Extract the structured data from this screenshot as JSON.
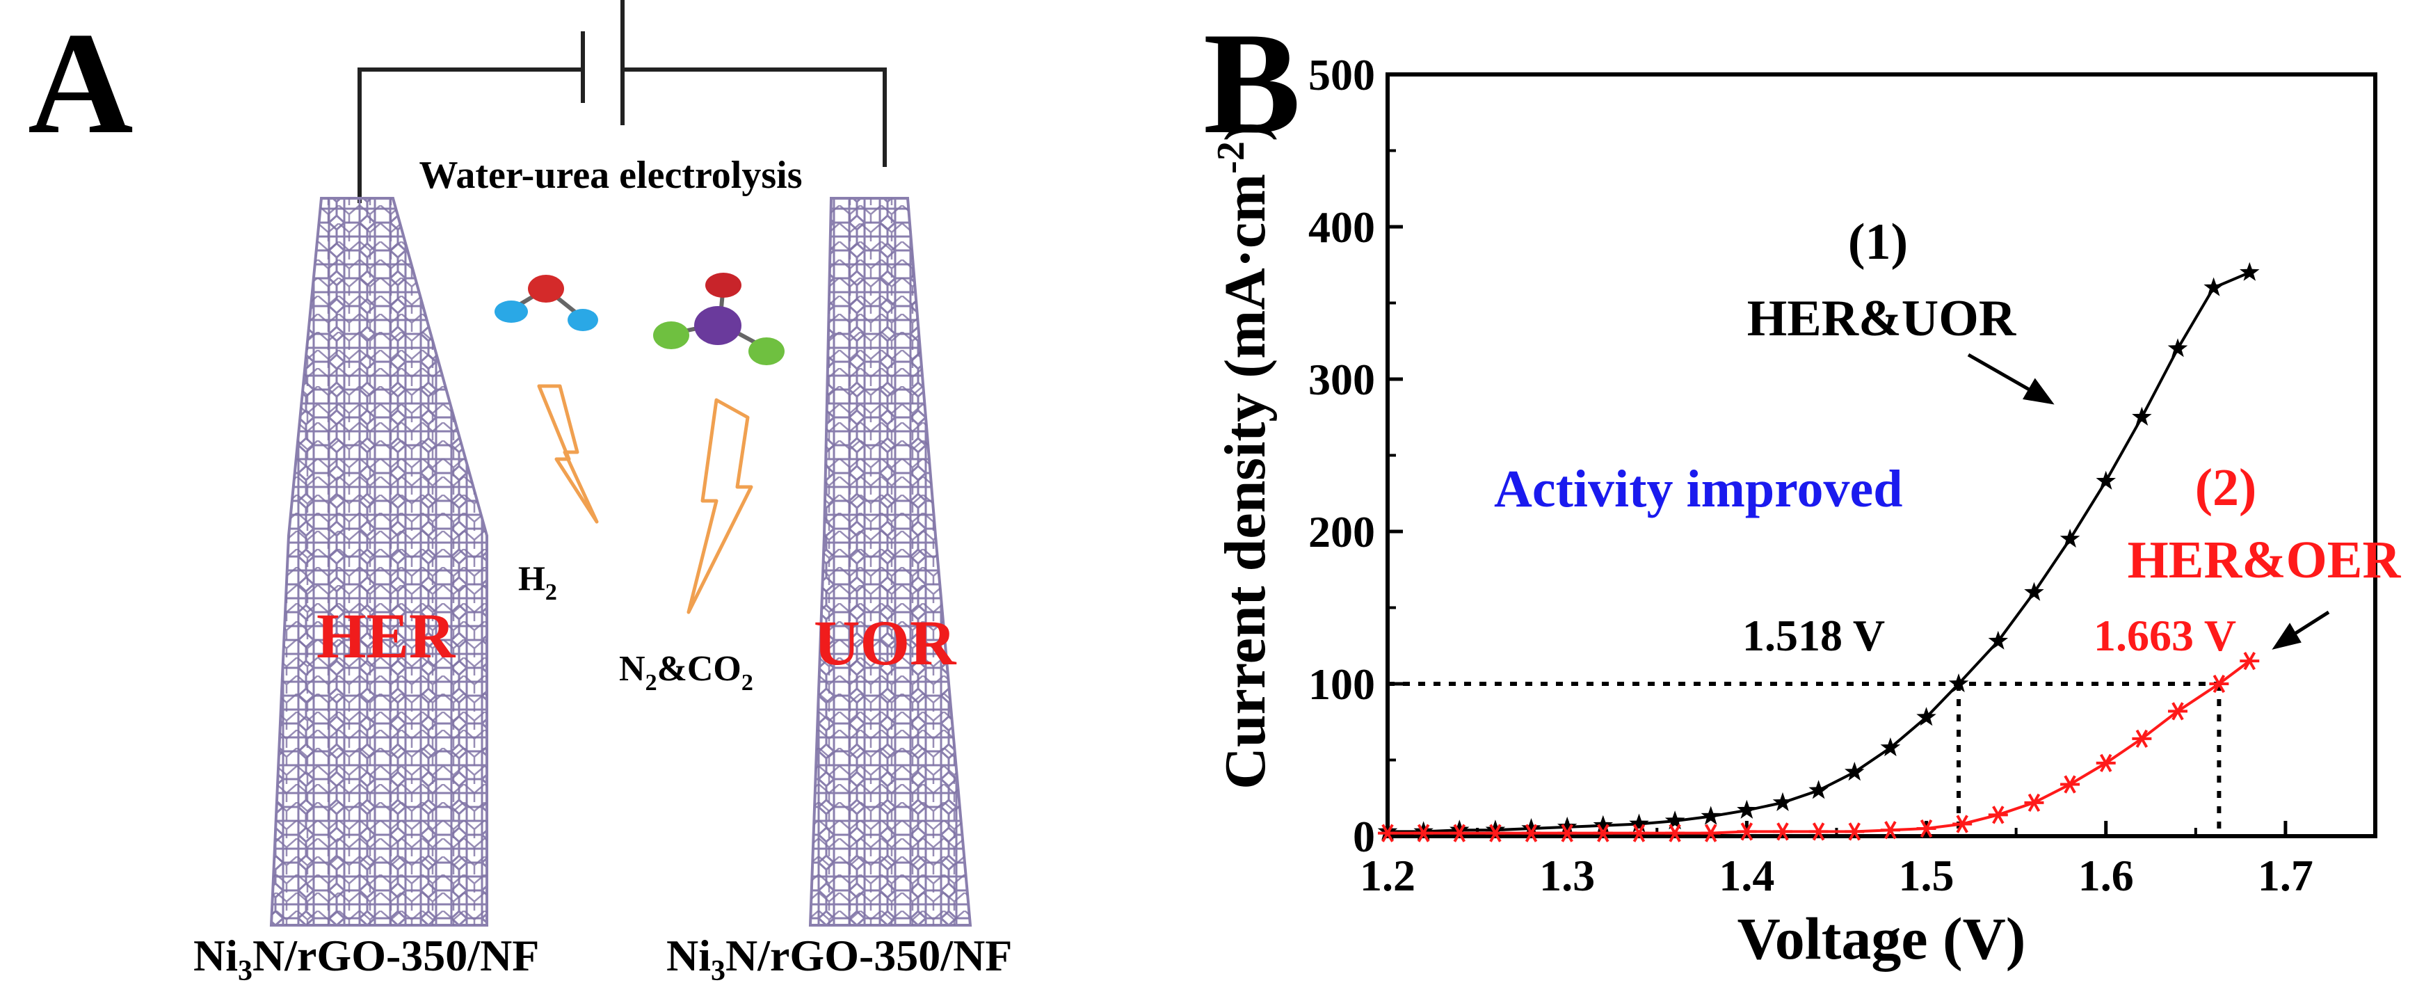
{
  "panel_a": {
    "label": "A",
    "circuit_caption": "Water-urea electrolysis",
    "left_tag": "HER",
    "right_tag": "UOR",
    "h2_base": "H",
    "h2_sub": "2",
    "products_n2": "N",
    "products_n2_sub": "2",
    "products_mid": "&CO",
    "products_co2_sub": "2",
    "left_caption": {
      "pre": "Ni",
      "sub": "3",
      "post": "N/rGO-350/NF"
    },
    "right_caption": {
      "pre": "Ni",
      "sub": "3",
      "post": "N/rGO-350/NF"
    },
    "colors": {
      "electrode": "#8a7fae",
      "tag": "#f01c1c",
      "bolt": "#f0a050"
    }
  },
  "panel_b": {
    "label": "B",
    "ylabel_main": "Current density (mA·cm",
    "ylabel_sup": "-2",
    "ylabel_close": ")",
    "xlabel": "Voltage (V)",
    "annotation_improved": "Activity improved",
    "annotation_1_num": "(1)",
    "annotation_1_label": "HER&UOR",
    "annotation_2_num": "(2)",
    "annotation_2_label": "HER&OER",
    "v1_label": "1.518 V",
    "v2_label": "1.663 V",
    "colors": {
      "series1": "#000000",
      "series2": "#ff1a1a",
      "improved": "#1a1aee"
    }
  },
  "chart_data": {
    "type": "line",
    "xlabel": "Voltage (V)",
    "ylabel": "Current density (mA·cm-2)",
    "xlim": [
      1.2,
      1.75
    ],
    "ylim": [
      0,
      500
    ],
    "xticks": [
      "1.2",
      "1.3",
      "1.4",
      "1.5",
      "1.6",
      "1.7"
    ],
    "yticks": [
      "0",
      "100",
      "200",
      "300",
      "400",
      "500"
    ],
    "series": [
      {
        "name": "HER&UOR",
        "marker": "star",
        "x": [
          1.2,
          1.22,
          1.24,
          1.26,
          1.28,
          1.3,
          1.32,
          1.34,
          1.36,
          1.38,
          1.4,
          1.42,
          1.44,
          1.46,
          1.48,
          1.5,
          1.518,
          1.54,
          1.56,
          1.58,
          1.6,
          1.62,
          1.64,
          1.66,
          1.68
        ],
        "values": [
          3,
          3,
          4,
          4,
          5,
          6,
          7,
          8,
          10,
          13,
          17,
          22,
          30,
          42,
          58,
          78,
          100,
          128,
          160,
          195,
          233,
          275,
          320,
          360,
          370
        ]
      },
      {
        "name": "HER&OER",
        "marker": "asterisk",
        "x": [
          1.2,
          1.22,
          1.24,
          1.26,
          1.28,
          1.3,
          1.32,
          1.34,
          1.36,
          1.38,
          1.4,
          1.42,
          1.44,
          1.46,
          1.48,
          1.5,
          1.52,
          1.54,
          1.56,
          1.58,
          1.6,
          1.62,
          1.64,
          1.663,
          1.68
        ],
        "values": [
          2,
          2,
          2,
          2,
          2,
          2,
          2,
          2,
          2,
          2,
          3,
          3,
          3,
          3,
          4,
          5,
          8,
          14,
          22,
          34,
          48,
          64,
          82,
          100,
          115
        ]
      }
    ],
    "reference_lines": {
      "y": 100,
      "x1": 1.518,
      "x2": 1.663
    }
  }
}
